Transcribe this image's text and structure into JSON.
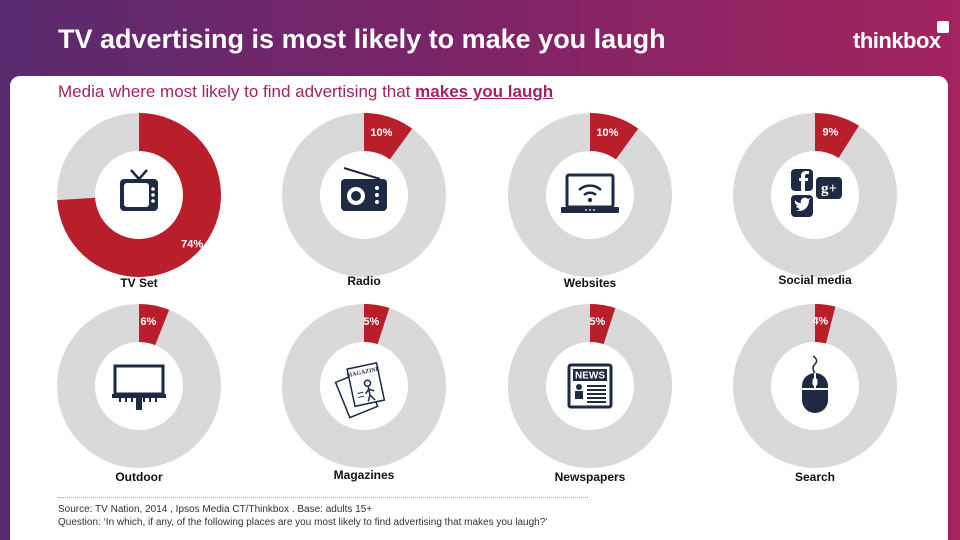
{
  "header": {
    "title": "TV advertising is most likely to make you laugh",
    "brand": "thinkbox",
    "subtitle_prefix": "Media where most likely to find advertising that ",
    "subtitle_emphasis": "makes you laugh"
  },
  "footer": {
    "source": "Source: TV Nation, 2014 , Ipsos Media CT/Thinkbox . Base: adults 15+",
    "question": "Question: ‘In which, if any, of the following places are you most likely to find advertising that makes you laugh?’"
  },
  "colors": {
    "accent": "#b81f2b",
    "track": "#d9d9d9",
    "icon": "#1e2a44",
    "title_purple": "#a3245e"
  },
  "chart_data": {
    "type": "pie",
    "unit": "%",
    "categories": [
      "TV Set",
      "Radio",
      "Websites",
      "Social media",
      "Outdoor",
      "Magazines",
      "Newspapers",
      "Search"
    ],
    "values": [
      74,
      10,
      10,
      9,
      6,
      5,
      5,
      4
    ],
    "value_labels": [
      "74%",
      "10%",
      "10%",
      "9%",
      "6%",
      "5%",
      "5%",
      "4%"
    ],
    "icons": [
      "tv-icon",
      "radio-icon",
      "laptop-wifi-icon",
      "social-icons",
      "billboard-icon",
      "magazine-icon",
      "newspaper-icon",
      "mouse-icon"
    ]
  }
}
